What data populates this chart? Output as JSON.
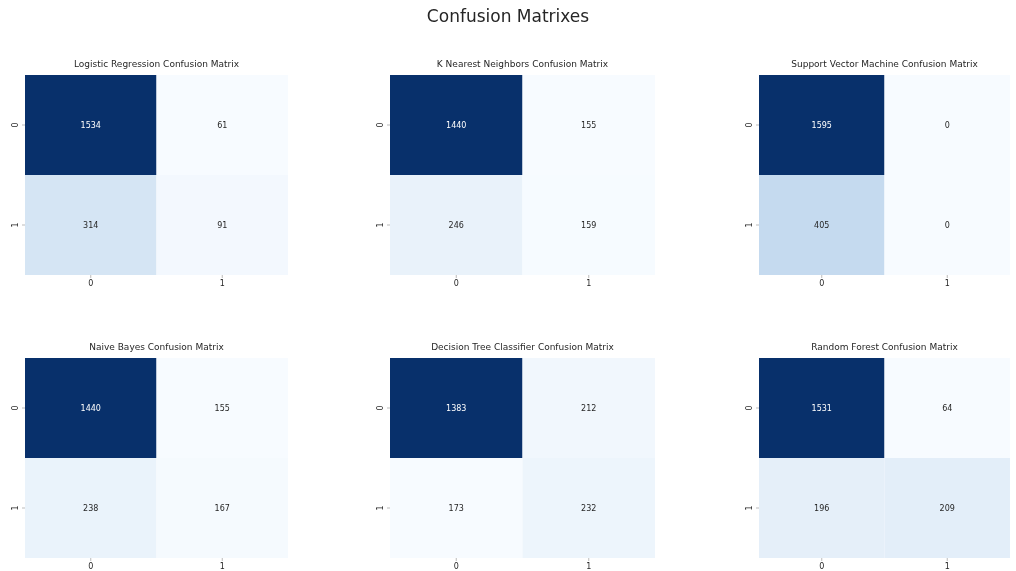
{
  "chart_data": [
    {
      "type": "heatmap",
      "title": "Logistic Regression Confusion Matrix",
      "annotations": [
        "Confusion Matrixes"
      ],
      "categories": [
        "0",
        "1"
      ],
      "y_categories": [
        "0",
        "1"
      ],
      "cells": [
        [
          1534,
          61
        ],
        [
          314,
          91
        ]
      ],
      "data_labels": true
    },
    {
      "type": "heatmap",
      "title": "K Nearest Neighbors Confusion Matrix",
      "categories": [
        "0",
        "1"
      ],
      "y_categories": [
        "0",
        "1"
      ],
      "cells": [
        [
          1440,
          155
        ],
        [
          246,
          159
        ]
      ],
      "data_labels": true
    },
    {
      "type": "heatmap",
      "title": "Support Vector Machine Confusion Matrix",
      "categories": [
        "0",
        "1"
      ],
      "y_categories": [
        "0",
        "1"
      ],
      "cells": [
        [
          1595,
          0
        ],
        [
          405,
          0
        ]
      ],
      "data_labels": true
    },
    {
      "type": "heatmap",
      "title": "Naive Bayes Confusion Matrix",
      "categories": [
        "0",
        "1"
      ],
      "y_categories": [
        "0",
        "1"
      ],
      "cells": [
        [
          1440,
          155
        ],
        [
          238,
          167
        ]
      ],
      "data_labels": true
    },
    {
      "type": "heatmap",
      "title": "Decision Tree Classifier Confusion Matrix",
      "categories": [
        "0",
        "1"
      ],
      "y_categories": [
        "0",
        "1"
      ],
      "cells": [
        [
          1383,
          212
        ],
        [
          173,
          232
        ]
      ],
      "data_labels": true
    },
    {
      "type": "heatmap",
      "title": "Random Forest Confusion Matrix",
      "categories": [
        "0",
        "1"
      ],
      "y_categories": [
        "0",
        "1"
      ],
      "cells": [
        [
          1531,
          64
        ],
        [
          196,
          209
        ]
      ],
      "data_labels": true
    }
  ]
}
